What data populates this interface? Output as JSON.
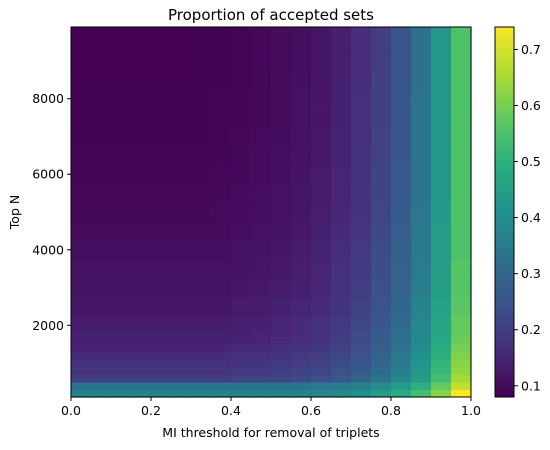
{
  "chart_data": {
    "type": "heatmap",
    "title": "Proportion of accepted sets",
    "xlabel": "MI threshold for removal of triplets",
    "ylabel": "Top N",
    "x_ticks": [
      "0.0",
      "0.2",
      "0.4",
      "0.6",
      "0.8",
      "1.0"
    ],
    "y_ticks": [
      "2000",
      "4000",
      "6000",
      "8000"
    ],
    "colorbar_ticks": [
      "0.1",
      "0.2",
      "0.3",
      "0.4",
      "0.5",
      "0.6",
      "0.7"
    ],
    "xlim": [
      0.0,
      1.0
    ],
    "ylim": [
      100,
      9900
    ],
    "color_range": [
      0.08,
      0.74
    ],
    "colormap": "viridis",
    "x_centers": [
      0.025,
      0.075,
      0.125,
      0.175,
      0.225,
      0.275,
      0.325,
      0.375,
      0.425,
      0.475,
      0.525,
      0.575,
      0.625,
      0.675,
      0.725,
      0.775,
      0.825,
      0.875,
      0.925,
      0.975
    ],
    "top_n": [
      200,
      400,
      600,
      800,
      1000,
      1200,
      1400,
      1600,
      1800,
      2000,
      2500,
      3000,
      3500,
      4000,
      4500,
      5000,
      5500,
      6000,
      6500,
      7000,
      7500,
      8000,
      8500,
      9000,
      9500
    ],
    "row_values": [
      [
        0.37,
        0.37,
        0.37,
        0.37,
        0.37,
        0.37,
        0.37,
        0.37,
        0.37,
        0.37,
        0.37,
        0.37,
        0.38,
        0.39,
        0.41,
        0.44,
        0.48,
        0.54,
        0.62,
        0.74
      ],
      [
        0.33,
        0.33,
        0.33,
        0.33,
        0.33,
        0.33,
        0.33,
        0.33,
        0.33,
        0.33,
        0.33,
        0.33,
        0.34,
        0.35,
        0.37,
        0.4,
        0.44,
        0.5,
        0.58,
        0.68
      ],
      [
        0.2,
        0.2,
        0.2,
        0.2,
        0.2,
        0.2,
        0.2,
        0.2,
        0.21,
        0.21,
        0.22,
        0.23,
        0.24,
        0.26,
        0.29,
        0.33,
        0.38,
        0.45,
        0.54,
        0.65
      ],
      [
        0.18,
        0.18,
        0.18,
        0.18,
        0.18,
        0.18,
        0.18,
        0.18,
        0.19,
        0.19,
        0.2,
        0.21,
        0.22,
        0.24,
        0.27,
        0.31,
        0.36,
        0.43,
        0.52,
        0.63
      ],
      [
        0.17,
        0.17,
        0.17,
        0.17,
        0.17,
        0.17,
        0.17,
        0.17,
        0.18,
        0.18,
        0.19,
        0.2,
        0.21,
        0.23,
        0.26,
        0.3,
        0.35,
        0.42,
        0.51,
        0.62
      ],
      [
        0.16,
        0.16,
        0.16,
        0.16,
        0.16,
        0.16,
        0.16,
        0.16,
        0.17,
        0.17,
        0.18,
        0.19,
        0.2,
        0.22,
        0.25,
        0.29,
        0.34,
        0.41,
        0.5,
        0.61
      ],
      [
        0.15,
        0.15,
        0.15,
        0.15,
        0.15,
        0.15,
        0.15,
        0.15,
        0.16,
        0.16,
        0.17,
        0.18,
        0.19,
        0.21,
        0.24,
        0.28,
        0.33,
        0.4,
        0.49,
        0.6
      ],
      [
        0.14,
        0.14,
        0.14,
        0.14,
        0.14,
        0.14,
        0.14,
        0.14,
        0.15,
        0.15,
        0.16,
        0.17,
        0.18,
        0.2,
        0.23,
        0.27,
        0.32,
        0.39,
        0.48,
        0.59
      ],
      [
        0.14,
        0.14,
        0.14,
        0.14,
        0.14,
        0.14,
        0.14,
        0.14,
        0.14,
        0.15,
        0.15,
        0.16,
        0.18,
        0.2,
        0.23,
        0.27,
        0.32,
        0.39,
        0.47,
        0.58
      ],
      [
        0.13,
        0.13,
        0.13,
        0.13,
        0.13,
        0.13,
        0.13,
        0.13,
        0.14,
        0.14,
        0.15,
        0.16,
        0.17,
        0.19,
        0.22,
        0.26,
        0.31,
        0.38,
        0.47,
        0.58
      ],
      [
        0.12,
        0.12,
        0.12,
        0.12,
        0.12,
        0.12,
        0.12,
        0.12,
        0.13,
        0.13,
        0.14,
        0.15,
        0.16,
        0.18,
        0.21,
        0.25,
        0.3,
        0.37,
        0.46,
        0.57
      ],
      [
        0.115,
        0.115,
        0.115,
        0.115,
        0.115,
        0.115,
        0.115,
        0.115,
        0.12,
        0.125,
        0.13,
        0.14,
        0.155,
        0.175,
        0.2,
        0.24,
        0.29,
        0.36,
        0.45,
        0.56
      ],
      [
        0.11,
        0.11,
        0.11,
        0.11,
        0.11,
        0.11,
        0.11,
        0.11,
        0.115,
        0.12,
        0.125,
        0.135,
        0.15,
        0.17,
        0.195,
        0.235,
        0.285,
        0.355,
        0.45,
        0.56
      ],
      [
        0.105,
        0.105,
        0.105,
        0.105,
        0.105,
        0.105,
        0.105,
        0.105,
        0.11,
        0.115,
        0.12,
        0.13,
        0.145,
        0.165,
        0.19,
        0.23,
        0.28,
        0.35,
        0.44,
        0.55
      ],
      [
        0.1,
        0.1,
        0.1,
        0.1,
        0.1,
        0.1,
        0.1,
        0.1,
        0.105,
        0.11,
        0.115,
        0.125,
        0.14,
        0.16,
        0.185,
        0.225,
        0.275,
        0.345,
        0.44,
        0.55
      ],
      [
        0.095,
        0.095,
        0.095,
        0.095,
        0.095,
        0.095,
        0.095,
        0.1,
        0.1,
        0.105,
        0.11,
        0.12,
        0.135,
        0.155,
        0.18,
        0.22,
        0.27,
        0.34,
        0.435,
        0.55
      ],
      [
        0.092,
        0.092,
        0.092,
        0.092,
        0.092,
        0.092,
        0.092,
        0.095,
        0.1,
        0.105,
        0.11,
        0.12,
        0.13,
        0.15,
        0.18,
        0.215,
        0.265,
        0.335,
        0.43,
        0.55
      ],
      [
        0.09,
        0.09,
        0.09,
        0.09,
        0.09,
        0.09,
        0.09,
        0.092,
        0.095,
        0.1,
        0.105,
        0.115,
        0.13,
        0.15,
        0.175,
        0.215,
        0.265,
        0.335,
        0.43,
        0.55
      ],
      [
        0.087,
        0.087,
        0.087,
        0.087,
        0.087,
        0.087,
        0.087,
        0.09,
        0.095,
        0.1,
        0.105,
        0.115,
        0.125,
        0.145,
        0.175,
        0.21,
        0.26,
        0.33,
        0.43,
        0.55
      ],
      [
        0.085,
        0.085,
        0.085,
        0.085,
        0.085,
        0.085,
        0.085,
        0.088,
        0.092,
        0.097,
        0.103,
        0.112,
        0.125,
        0.145,
        0.17,
        0.21,
        0.26,
        0.33,
        0.43,
        0.55
      ],
      [
        0.083,
        0.083,
        0.083,
        0.083,
        0.083,
        0.083,
        0.085,
        0.087,
        0.09,
        0.095,
        0.102,
        0.11,
        0.122,
        0.142,
        0.17,
        0.208,
        0.258,
        0.33,
        0.43,
        0.55
      ],
      [
        0.082,
        0.082,
        0.082,
        0.082,
        0.082,
        0.082,
        0.084,
        0.086,
        0.09,
        0.095,
        0.1,
        0.11,
        0.12,
        0.14,
        0.168,
        0.206,
        0.256,
        0.33,
        0.43,
        0.55
      ],
      [
        0.081,
        0.081,
        0.081,
        0.081,
        0.081,
        0.081,
        0.083,
        0.085,
        0.088,
        0.093,
        0.1,
        0.108,
        0.12,
        0.14,
        0.167,
        0.205,
        0.255,
        0.328,
        0.43,
        0.55
      ],
      [
        0.08,
        0.08,
        0.08,
        0.08,
        0.08,
        0.08,
        0.082,
        0.084,
        0.087,
        0.092,
        0.098,
        0.107,
        0.118,
        0.138,
        0.165,
        0.203,
        0.253,
        0.327,
        0.43,
        0.55
      ],
      [
        0.08,
        0.08,
        0.08,
        0.08,
        0.08,
        0.08,
        0.082,
        0.084,
        0.087,
        0.092,
        0.098,
        0.107,
        0.118,
        0.138,
        0.165,
        0.203,
        0.253,
        0.327,
        0.43,
        0.55
      ]
    ]
  }
}
